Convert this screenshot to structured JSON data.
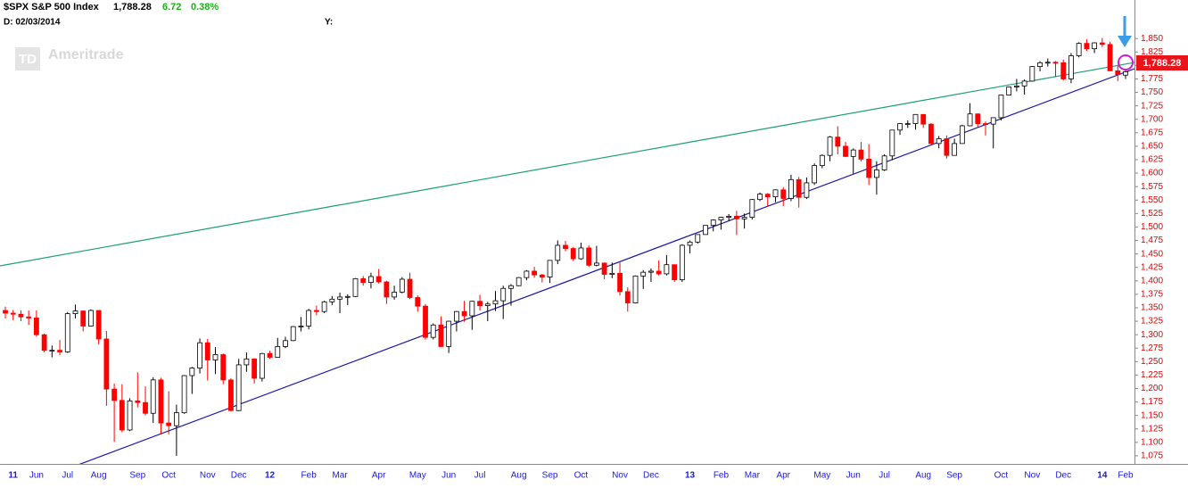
{
  "header": {
    "symbol": "$SPX S&P 500 Index",
    "last": "1,788.28",
    "change": "6.72",
    "change_pct": "0.38%",
    "date": "D: 02/03/2014",
    "y_label": "Y:",
    "logo": "TD",
    "watermark": "Ameritrade"
  },
  "chart_data": {
    "type": "candlestick",
    "categories": [
      null,
      "11",
      null,
      null,
      "Jun",
      null,
      null,
      null,
      "Jul",
      null,
      null,
      null,
      "Aug",
      null,
      null,
      null,
      null,
      "Sep",
      null,
      null,
      null,
      "Oct",
      null,
      null,
      null,
      null,
      "Nov",
      null,
      null,
      null,
      "Dec",
      null,
      null,
      null,
      "12",
      null,
      null,
      null,
      null,
      "Feb",
      null,
      null,
      null,
      "Mar",
      null,
      null,
      null,
      null,
      "Apr",
      null,
      null,
      null,
      null,
      "May",
      null,
      null,
      null,
      "Jun",
      null,
      null,
      null,
      "Jul",
      null,
      null,
      null,
      null,
      "Aug",
      null,
      null,
      null,
      "Sep",
      null,
      null,
      null,
      "Oct",
      null,
      null,
      null,
      null,
      "Nov",
      null,
      null,
      null,
      "Dec",
      null,
      null,
      null,
      null,
      "13",
      null,
      null,
      null,
      "Feb",
      null,
      null,
      null,
      "Mar",
      null,
      null,
      null,
      "Apr",
      null,
      null,
      null,
      null,
      "May",
      null,
      null,
      null,
      "Jun",
      null,
      null,
      null,
      "Jul",
      null,
      null,
      null,
      null,
      "Aug",
      null,
      null,
      null,
      "Sep",
      null,
      null,
      null,
      null,
      null,
      "Oct",
      null,
      null,
      null,
      "Nov",
      null,
      null,
      null,
      "Dec",
      null,
      null,
      null,
      null,
      "14",
      null,
      null,
      "Feb"
    ],
    "open": [
      1345,
      1340,
      1338,
      1333,
      1331,
      1300,
      1271,
      1271,
      1268,
      1339,
      1344,
      1316,
      1345,
      1292,
      1199,
      1178,
      1123,
      1177,
      1174,
      1154,
      1216,
      1136,
      1131,
      1155,
      1224,
      1238,
      1285,
      1253,
      1263,
      1216,
      1159,
      1244,
      1255,
      1219,
      1265,
      1258,
      1278,
      1289,
      1315,
      1316,
      1345,
      1343,
      1361,
      1366,
      1370,
      1371,
      1404,
      1397,
      1408,
      1398,
      1370,
      1379,
      1403,
      1369,
      1353,
      1295,
      1318,
      1278,
      1325,
      1343,
      1335,
      1362,
      1354,
      1357,
      1363,
      1386,
      1391,
      1406,
      1418,
      1411,
      1407,
      1438,
      1466,
      1460,
      1441,
      1461,
      1429,
      1433,
      1412,
      1414,
      1380,
      1359,
      1409,
      1416,
      1418,
      1413,
      1430,
      1402,
      1466,
      1472,
      1486,
      1503,
      1513,
      1518,
      1520,
      1515,
      1518,
      1551,
      1561,
      1556,
      1569,
      1553,
      1588,
      1555,
      1582,
      1614,
      1633,
      1667,
      1650,
      1631,
      1643,
      1626,
      1592,
      1606,
      1632,
      1680,
      1692,
      1692,
      1709,
      1691,
      1655,
      1664,
      1633,
      1655,
      1688,
      1710,
      1692,
      1691,
      1703,
      1745,
      1760,
      1762,
      1771,
      1798,
      1805,
      1806,
      1805,
      1775,
      1818,
      1841,
      1831,
      1842,
      1839,
      1790,
      1782
    ],
    "high": [
      1352,
      1346,
      1345,
      1345,
      1345,
      1302,
      1280,
      1290,
      1342,
      1356,
      1345,
      1347,
      1345,
      1307,
      1209,
      1208,
      1182,
      1230,
      1204,
      1221,
      1220,
      1195,
      1170,
      1225,
      1240,
      1293,
      1292,
      1277,
      1265,
      1219,
      1255,
      1267,
      1256,
      1266,
      1270,
      1294,
      1296,
      1316,
      1333,
      1348,
      1354,
      1363,
      1372,
      1378,
      1375,
      1405,
      1409,
      1415,
      1422,
      1400,
      1391,
      1407,
      1415,
      1373,
      1357,
      1321,
      1334,
      1326,
      1344,
      1363,
      1363,
      1374,
      1361,
      1381,
      1391,
      1394,
      1407,
      1420,
      1426,
      1413,
      1438,
      1475,
      1474,
      1463,
      1471,
      1466,
      1465,
      1434,
      1434,
      1434,
      1388,
      1410,
      1420,
      1423,
      1438,
      1448,
      1430,
      1468,
      1475,
      1486,
      1503,
      1514,
      1519,
      1524,
      1530,
      1525,
      1552,
      1564,
      1563,
      1570,
      1574,
      1597,
      1593,
      1592,
      1618,
      1635,
      1669,
      1687,
      1658,
      1646,
      1658,
      1654,
      1622,
      1635,
      1680,
      1693,
      1698,
      1709,
      1709,
      1693,
      1669,
      1670,
      1664,
      1690,
      1730,
      1711,
      1696,
      1703,
      1745,
      1760,
      1775,
      1774,
      1799,
      1808,
      1813,
      1808,
      1811,
      1823,
      1843,
      1849,
      1843,
      1851,
      1844,
      1799,
      1791
    ],
    "low": [
      1330,
      1327,
      1325,
      1318,
      1296,
      1267,
      1258,
      1262,
      1266,
      1330,
      1306,
      1315,
      1282,
      1168,
      1101,
      1119,
      1121,
      1165,
      1150,
      1136,
      1115,
      1115,
      1075,
      1153,
      1190,
      1228,
      1215,
      1227,
      1208,
      1158,
      1158,
      1231,
      1209,
      1213,
      1255,
      1258,
      1275,
      1288,
      1306,
      1310,
      1336,
      1340,
      1355,
      1340,
      1355,
      1370,
      1391,
      1386,
      1395,
      1357,
      1365,
      1377,
      1366,
      1343,
      1291,
      1291,
      1277,
      1266,
      1306,
      1324,
      1309,
      1345,
      1325,
      1344,
      1329,
      1354,
      1390,
      1401,
      1406,
      1397,
      1396,
      1431,
      1455,
      1437,
      1439,
      1426,
      1427,
      1403,
      1405,
      1373,
      1343,
      1358,
      1385,
      1398,
      1410,
      1410,
      1398,
      1398,
      1451,
      1469,
      1486,
      1492,
      1495,
      1511,
      1485,
      1497,
      1514,
      1548,
      1538,
      1546,
      1539,
      1548,
      1536,
      1552,
      1578,
      1609,
      1622,
      1635,
      1630,
      1599,
      1622,
      1578,
      1560,
      1604,
      1624,
      1671,
      1684,
      1681,
      1684,
      1654,
      1646,
      1627,
      1633,
      1655,
      1687,
      1686,
      1670,
      1646,
      1698,
      1744,
      1752,
      1746,
      1770,
      1789,
      1798,
      1779,
      1772,
      1767,
      1815,
      1827,
      1823,
      1834,
      1790,
      1771,
      1775
    ],
    "close": [
      1340,
      1338,
      1333,
      1331,
      1300,
      1271,
      1271,
      1268,
      1339,
      1344,
      1316,
      1345,
      1292,
      1199,
      1178,
      1123,
      1177,
      1174,
      1154,
      1216,
      1136,
      1131,
      1155,
      1224,
      1238,
      1285,
      1253,
      1263,
      1216,
      1159,
      1244,
      1255,
      1219,
      1265,
      1258,
      1278,
      1289,
      1315,
      1316,
      1345,
      1343,
      1361,
      1366,
      1370,
      1371,
      1404,
      1397,
      1408,
      1398,
      1370,
      1379,
      1403,
      1369,
      1353,
      1295,
      1318,
      1278,
      1325,
      1343,
      1335,
      1362,
      1354,
      1357,
      1363,
      1386,
      1391,
      1406,
      1418,
      1411,
      1407,
      1438,
      1466,
      1460,
      1441,
      1461,
      1429,
      1433,
      1412,
      1414,
      1380,
      1359,
      1409,
      1416,
      1418,
      1413,
      1430,
      1402,
      1466,
      1472,
      1486,
      1503,
      1513,
      1518,
      1520,
      1515,
      1518,
      1551,
      1561,
      1556,
      1569,
      1553,
      1588,
      1555,
      1582,
      1614,
      1633,
      1667,
      1650,
      1631,
      1643,
      1626,
      1592,
      1606,
      1632,
      1680,
      1692,
      1692,
      1709,
      1691,
      1655,
      1664,
      1633,
      1655,
      1688,
      1710,
      1692,
      1691,
      1703,
      1745,
      1760,
      1762,
      1771,
      1798,
      1805,
      1806,
      1805,
      1775,
      1818,
      1841,
      1831,
      1842,
      1839,
      1790,
      1783,
      1788.28
    ],
    "up_color": "#ffffff",
    "down_color": "#ff0000",
    "outline_color": "#000000",
    "ylim": [
      1060,
      1905
    ],
    "yticks": [
      {
        "value": 1075,
        "label": "1,075"
      },
      {
        "value": 1100,
        "label": "1,100"
      },
      {
        "value": 1125,
        "label": "1,125"
      },
      {
        "value": 1150,
        "label": "1,150"
      },
      {
        "value": 1175,
        "label": "1,175"
      },
      {
        "value": 1200,
        "label": "1,200"
      },
      {
        "value": 1225,
        "label": "1,225"
      },
      {
        "value": 1250,
        "label": "1,250"
      },
      {
        "value": 1275,
        "label": "1,275"
      },
      {
        "value": 1300,
        "label": "1,300"
      },
      {
        "value": 1325,
        "label": "1,325"
      },
      {
        "value": 1350,
        "label": "1,350"
      },
      {
        "value": 1375,
        "label": "1,375"
      },
      {
        "value": 1400,
        "label": "1,400"
      },
      {
        "value": 1425,
        "label": "1,425"
      },
      {
        "value": 1450,
        "label": "1,450"
      },
      {
        "value": 1475,
        "label": "1,475"
      },
      {
        "value": 1500,
        "label": "1,500"
      },
      {
        "value": 1525,
        "label": "1,525"
      },
      {
        "value": 1550,
        "label": "1,550"
      },
      {
        "value": 1575,
        "label": "1,575"
      },
      {
        "value": 1600,
        "label": "1,600"
      },
      {
        "value": 1625,
        "label": "1,625"
      },
      {
        "value": 1650,
        "label": "1,650"
      },
      {
        "value": 1675,
        "label": "1,675"
      },
      {
        "value": 1700,
        "label": "1,700"
      },
      {
        "value": 1725,
        "label": "1,725"
      },
      {
        "value": 1750,
        "label": "1,750"
      },
      {
        "value": 1775,
        "label": "1,775"
      },
      {
        "value": 1800,
        "label": "1,800"
      },
      {
        "value": 1825,
        "label": "1,825"
      },
      {
        "value": 1850,
        "label": "1,850"
      }
    ],
    "grid": false
  }
}
